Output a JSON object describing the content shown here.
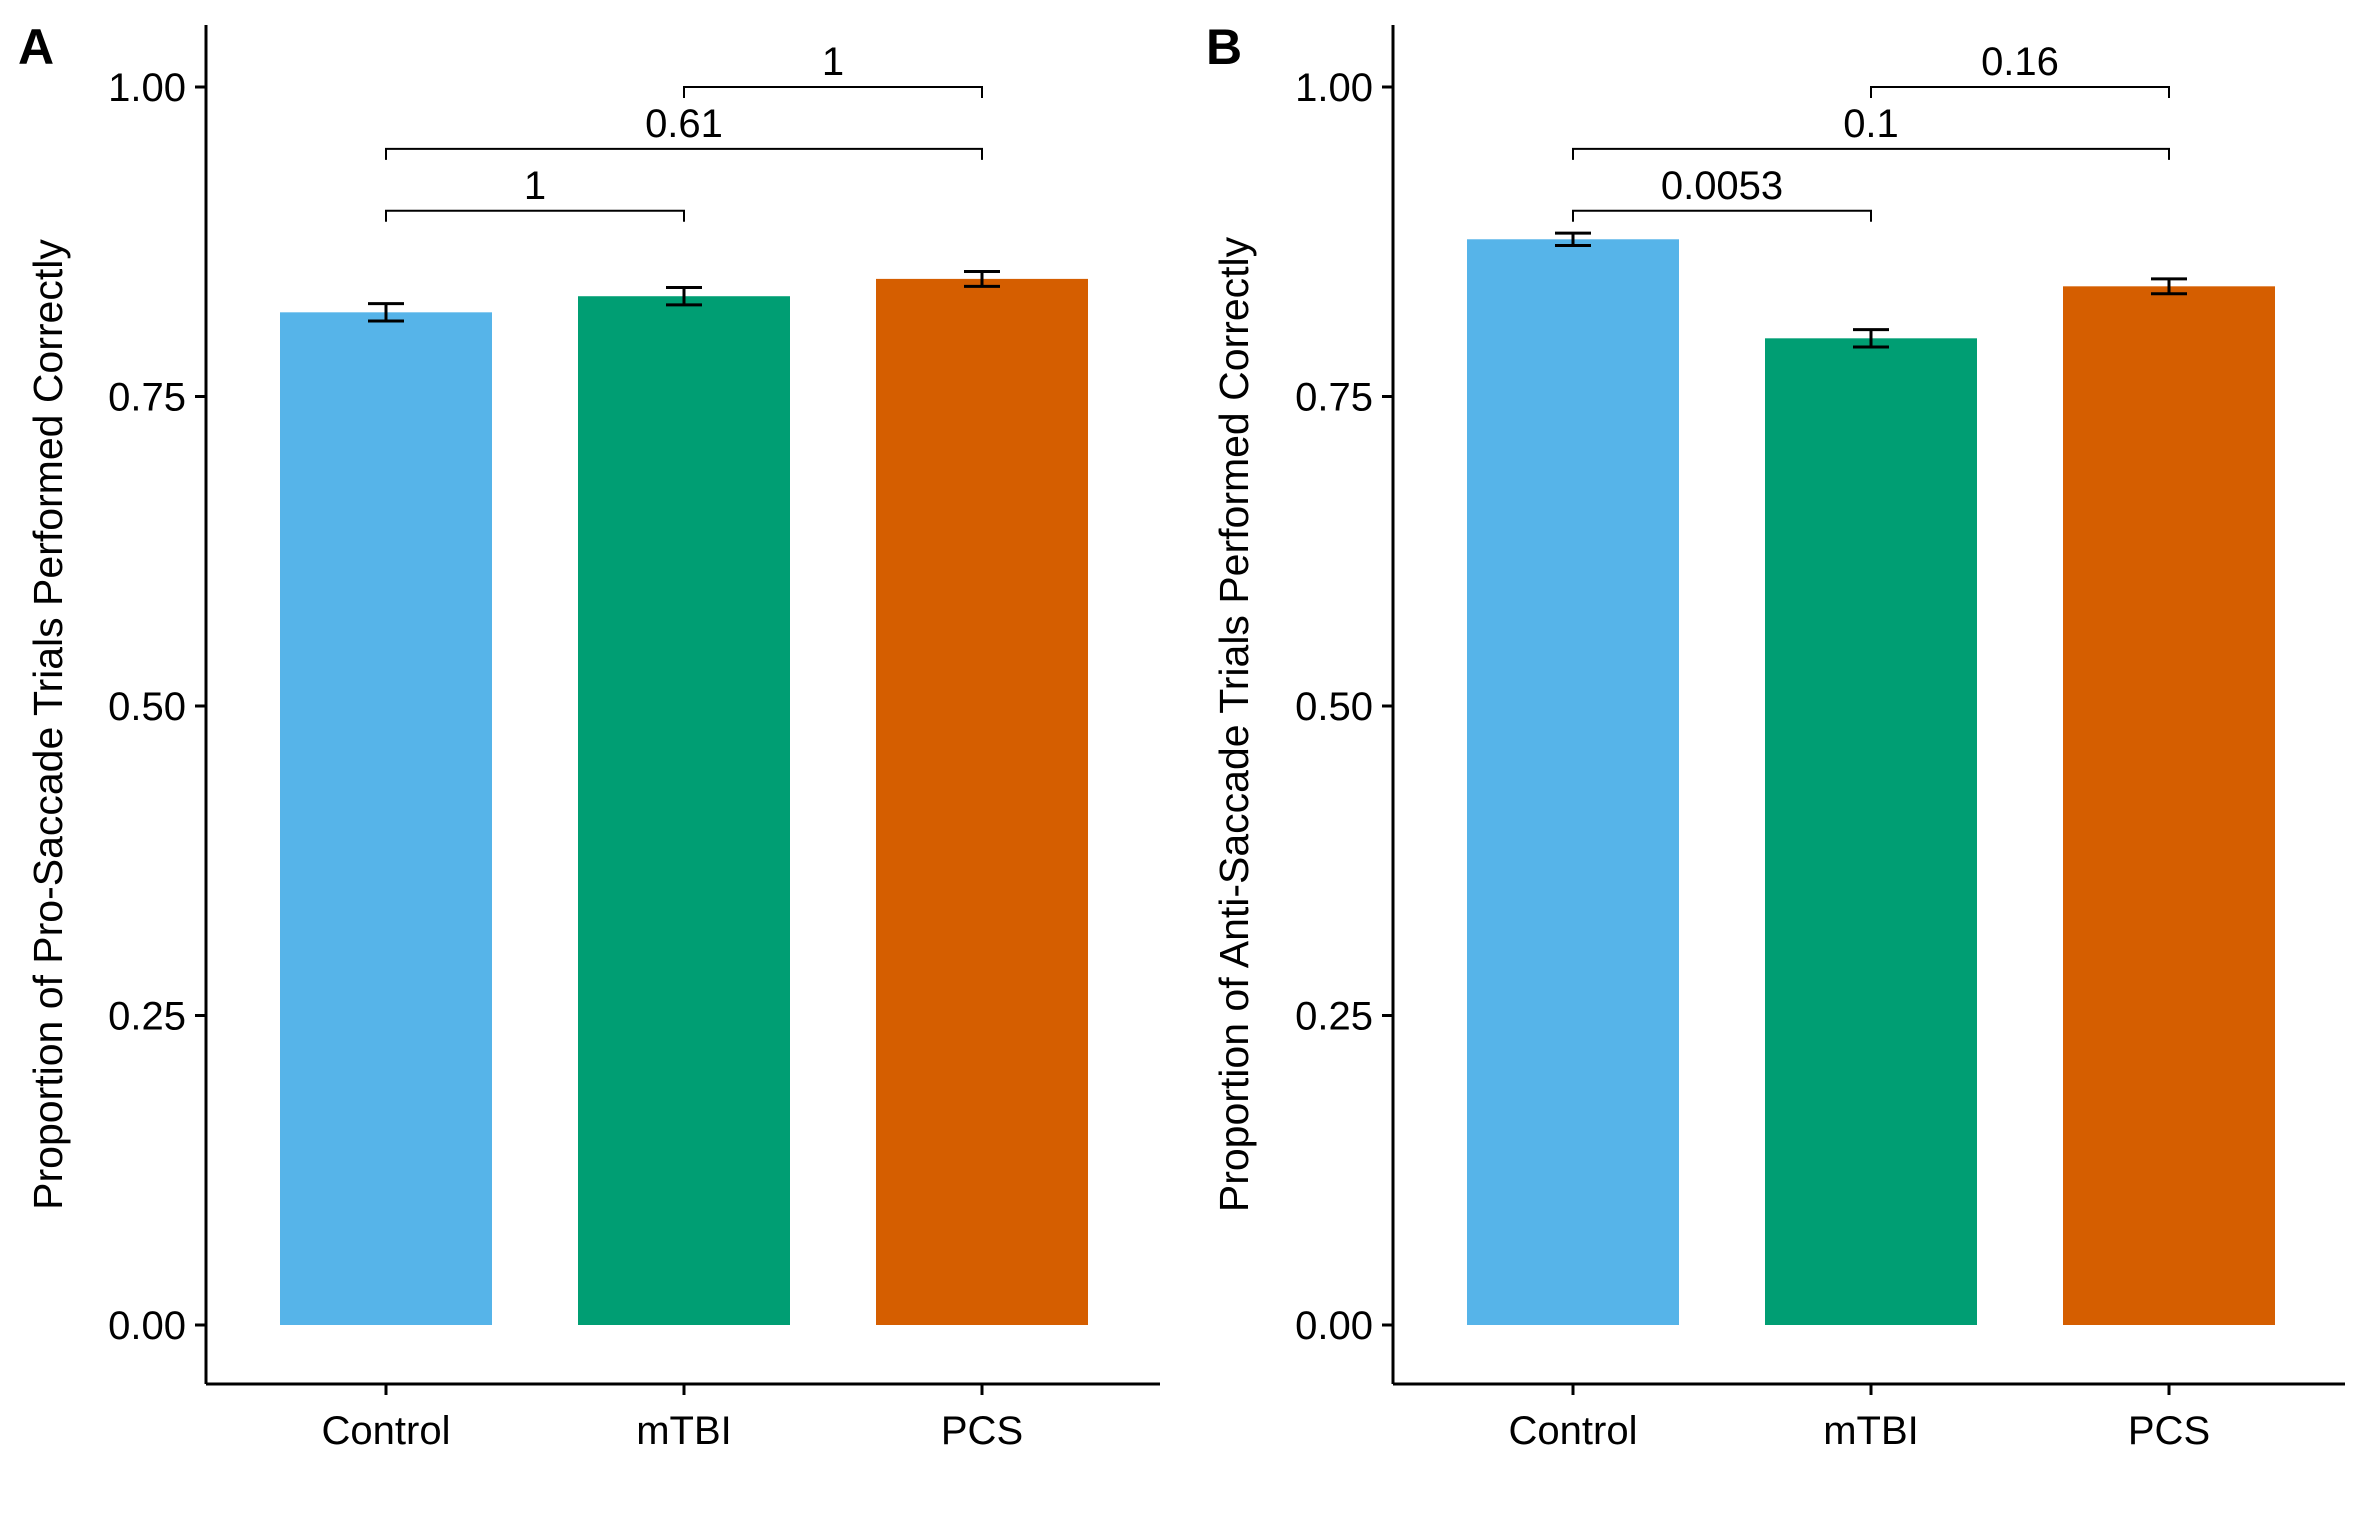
{
  "chart_data": [
    {
      "type": "bar",
      "panel_label": "A",
      "ylabel": "Proportion of Pro-Saccade Trials Performed Correctly",
      "xlabel": "",
      "categories": [
        "Control",
        "mTBI",
        "PCS"
      ],
      "values": [
        0.818,
        0.831,
        0.845
      ],
      "errors": [
        0.007,
        0.007,
        0.006
      ],
      "colors": [
        "#56B4E9",
        "#009E73",
        "#D55E00"
      ],
      "ylim": [
        0,
        1.05
      ],
      "yticks": [
        0,
        0.25,
        0.5,
        0.75,
        1.0
      ],
      "ytick_labels": [
        "0.00",
        "0.25",
        "0.50",
        "0.75",
        "1.00"
      ],
      "grid": false,
      "comparisons": [
        {
          "from": "Control",
          "to": "mTBI",
          "y": 0.9,
          "label": "1"
        },
        {
          "from": "Control",
          "to": "PCS",
          "y": 0.95,
          "label": "0.61"
        },
        {
          "from": "mTBI",
          "to": "PCS",
          "y": 1.0,
          "label": "1"
        }
      ]
    },
    {
      "type": "bar",
      "panel_label": "B",
      "ylabel": "Proportion of Anti-Saccade Trials Performed Correctly",
      "xlabel": "",
      "categories": [
        "Control",
        "mTBI",
        "PCS"
      ],
      "values": [
        0.877,
        0.797,
        0.839
      ],
      "errors": [
        0.005,
        0.007,
        0.006
      ],
      "colors": [
        "#56B4E9",
        "#009E73",
        "#D55E00"
      ],
      "ylim": [
        0,
        1.05
      ],
      "yticks": [
        0,
        0.25,
        0.5,
        0.75,
        1.0
      ],
      "ytick_labels": [
        "0.00",
        "0.25",
        "0.50",
        "0.75",
        "1.00"
      ],
      "grid": false,
      "comparisons": [
        {
          "from": "Control",
          "to": "mTBI",
          "y": 0.9,
          "label": "0.0053"
        },
        {
          "from": "Control",
          "to": "PCS",
          "y": 0.95,
          "label": "0.1"
        },
        {
          "from": "mTBI",
          "to": "PCS",
          "y": 1.0,
          "label": "0.16"
        }
      ]
    }
  ]
}
